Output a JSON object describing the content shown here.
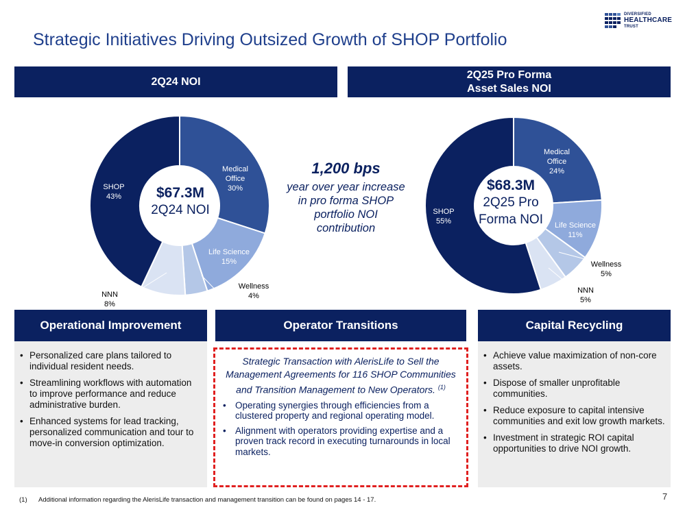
{
  "title": "Strategic Initiatives Driving Outsized Growth of SHOP Portfolio",
  "logo": {
    "line1": "DIVERSIFIED",
    "line2": "HEALTHCARE",
    "line3": "TRUST"
  },
  "left_header": "2Q24 NOI",
  "right_header": {
    "line1": "2Q25 Pro Forma",
    "line2": "Asset Sales NOI"
  },
  "left_center": {
    "value": "$67.3M",
    "label": "2Q24 NOI"
  },
  "right_center": {
    "value": "$68.3M",
    "label_line1": "2Q25 Pro",
    "label_line2": "Forma NOI"
  },
  "middle": {
    "bps": "1,200 bps",
    "line1": "year over year increase",
    "line2": "in pro forma SHOP",
    "line3": "portfolio NOI",
    "line4": "contribution"
  },
  "colors": {
    "navy": "#0B2160",
    "medical_office": "#2F5197",
    "life_science": "#8FAADC",
    "wellness": "#B4C7E7",
    "nnn": "#DAE3F3",
    "title_blue": "#1F3F8C",
    "dash_red": "#E02020"
  },
  "chart_data": [
    {
      "type": "pie",
      "title": "2Q24 NOI",
      "labels": [
        "Medical Office",
        "Life Science",
        "Wellness",
        "NNN",
        "SHOP"
      ],
      "values": [
        30,
        15,
        4,
        8,
        43
      ],
      "display": [
        "30%",
        "15%",
        "4%",
        "8%",
        "43%"
      ],
      "center_text": "$67.3M 2Q24 NOI"
    },
    {
      "type": "pie",
      "title": "2Q25 Pro Forma Asset Sales NOI",
      "labels": [
        "Medical Office",
        "Life Science",
        "Wellness",
        "NNN",
        "SHOP"
      ],
      "values": [
        24,
        11,
        5,
        5,
        55
      ],
      "display": [
        "24%",
        "11%",
        "5%",
        "5%",
        "55%"
      ],
      "center_text": "$68.3M 2Q25 Pro Forma NOI"
    }
  ],
  "operational": {
    "header": "Operational Improvement",
    "bullets": [
      "Personalized care plans tailored to individual resident needs.",
      "Streamlining workflows with automation to improve performance and reduce administrative burden.",
      "Enhanced systems for lead tracking, personalized communication and tour to move-in conversion optimization."
    ]
  },
  "operator": {
    "header": "Operator Transitions",
    "intro": "Strategic Transaction with AlerisLife to Sell the Management Agreements for 116 SHOP Communities and Transition Management to New Operators.",
    "intro_note": "(1)",
    "bullets": [
      "Operating synergies through efficiencies from a clustered property and regional operating model.",
      "Alignment with operators providing expertise and a proven track record in executing turnarounds in local markets."
    ]
  },
  "capital": {
    "header": "Capital Recycling",
    "bullets": [
      "Achieve value maximization of non-core assets.",
      "Dispose of smaller unprofitable communities.",
      "Reduce exposure to capital intensive communities and exit low growth markets.",
      "Investment in strategic ROI capital opportunities to drive NOI growth."
    ]
  },
  "footnote": {
    "num": "(1)",
    "text": "Additional information regarding the AlerisLife transaction and management transition can be found on pages 14 - 17."
  },
  "page_number": "7"
}
